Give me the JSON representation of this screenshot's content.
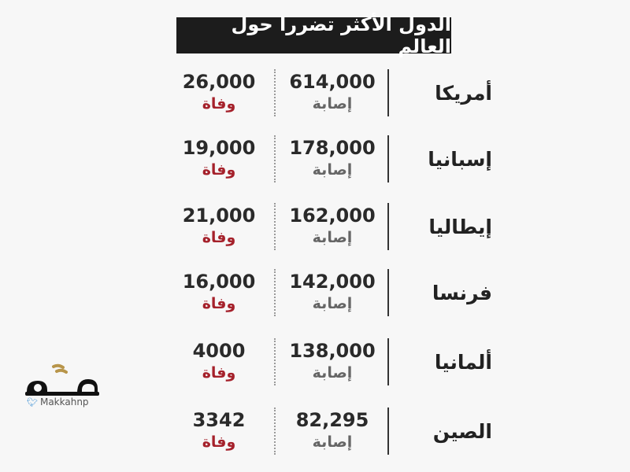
{
  "title": "الدول الأكثر تضررا حول العالم",
  "labels": {
    "cases": "إصابة",
    "deaths": "وفاة"
  },
  "colors": {
    "title_bg": "#1c1c1c",
    "deaths_label": "#a5212b",
    "cases_label": "#666666"
  },
  "brand": {
    "handle": "Makkahnp",
    "twitter_icon": "twitter-bird-icon"
  },
  "rows": [
    {
      "country": "أمريكا",
      "cases": "614,000",
      "deaths": "26,000"
    },
    {
      "country": "إسبانيا",
      "cases": "178,000",
      "deaths": "19,000"
    },
    {
      "country": "إيطاليا",
      "cases": "162,000",
      "deaths": "21,000"
    },
    {
      "country": "فرنسا",
      "cases": "142,000",
      "deaths": "16,000"
    },
    {
      "country": "ألمانيا",
      "cases": "138,000",
      "deaths": "4000"
    },
    {
      "country": "الصين",
      "cases": "82,295",
      "deaths": "3342"
    }
  ],
  "chart_data": {
    "type": "table",
    "title": "الدول الأكثر تضررا حول العالم",
    "columns": [
      "country",
      "إصابة",
      "وفاة"
    ],
    "categories": [
      "أمريكا",
      "إسبانيا",
      "إيطاليا",
      "فرنسا",
      "ألمانيا",
      "الصين"
    ],
    "series": [
      {
        "name": "إصابة",
        "values": [
          614000,
          178000,
          162000,
          142000,
          138000,
          82295
        ]
      },
      {
        "name": "وفاة",
        "values": [
          26000,
          19000,
          21000,
          16000,
          4000,
          3342
        ]
      }
    ]
  }
}
